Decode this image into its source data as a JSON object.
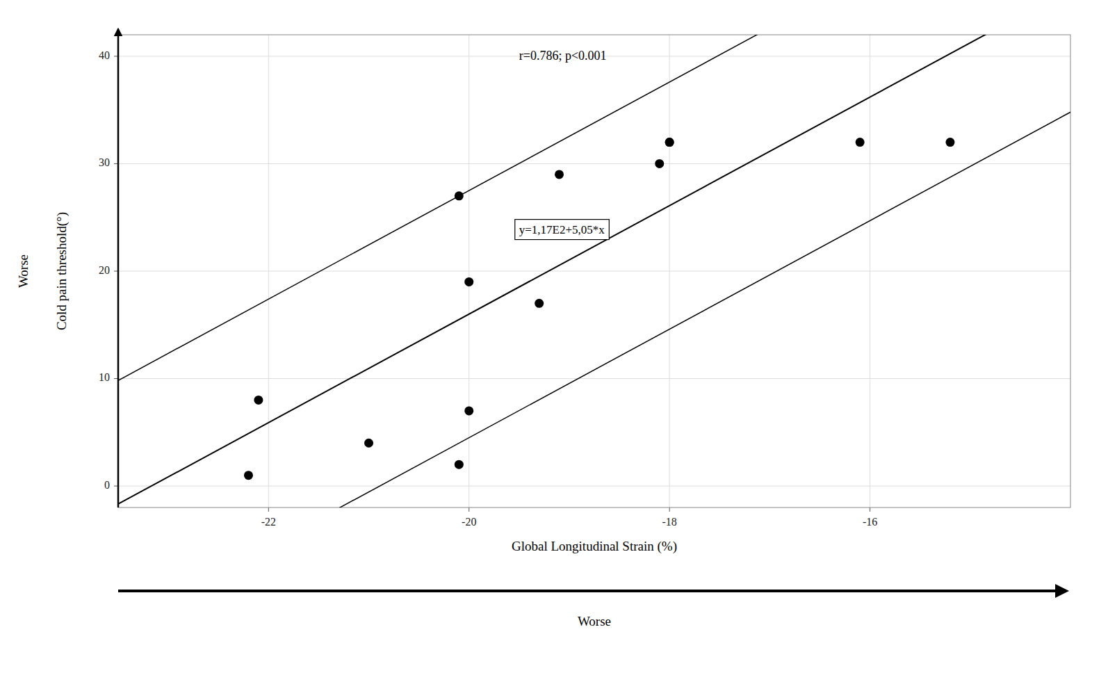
{
  "chart_data": {
    "type": "scatter",
    "x_label": "Global Longitudinal Strain (%)",
    "y_label": "Cold pain threshold(°)",
    "x_direction_label": "Worse",
    "y_direction_label": "Worse",
    "series": [
      {
        "type": "scatter",
        "color": "black",
        "x": [
          -22.2,
          -22.1,
          -21.0,
          -20.1,
          -20.0,
          -20.0,
          -20.1,
          -19.3,
          -19.1,
          -18.1,
          -18.0,
          -18.0,
          -16.1,
          -15.2
        ],
        "values": [
          1,
          8,
          4,
          2,
          7,
          19,
          27,
          17,
          29,
          30,
          32,
          32,
          32,
          32
        ]
      },
      {
        "type": "line",
        "color": "black",
        "intercept": 117.0,
        "slope": 5.05,
        "ci_offset": 11.5
      }
    ],
    "annotations": [
      {
        "text": "y=1,17E2+5,05*x"
      },
      {
        "text": "r=0.786; p<0.001"
      }
    ],
    "xlim": [
      -23.5,
      -14.0
    ],
    "ylim": [
      -2,
      42
    ],
    "xticks": [
      -22,
      -20,
      -18,
      -16
    ],
    "yticks": [
      0,
      10,
      20,
      30,
      40
    ],
    "grid": true
  }
}
